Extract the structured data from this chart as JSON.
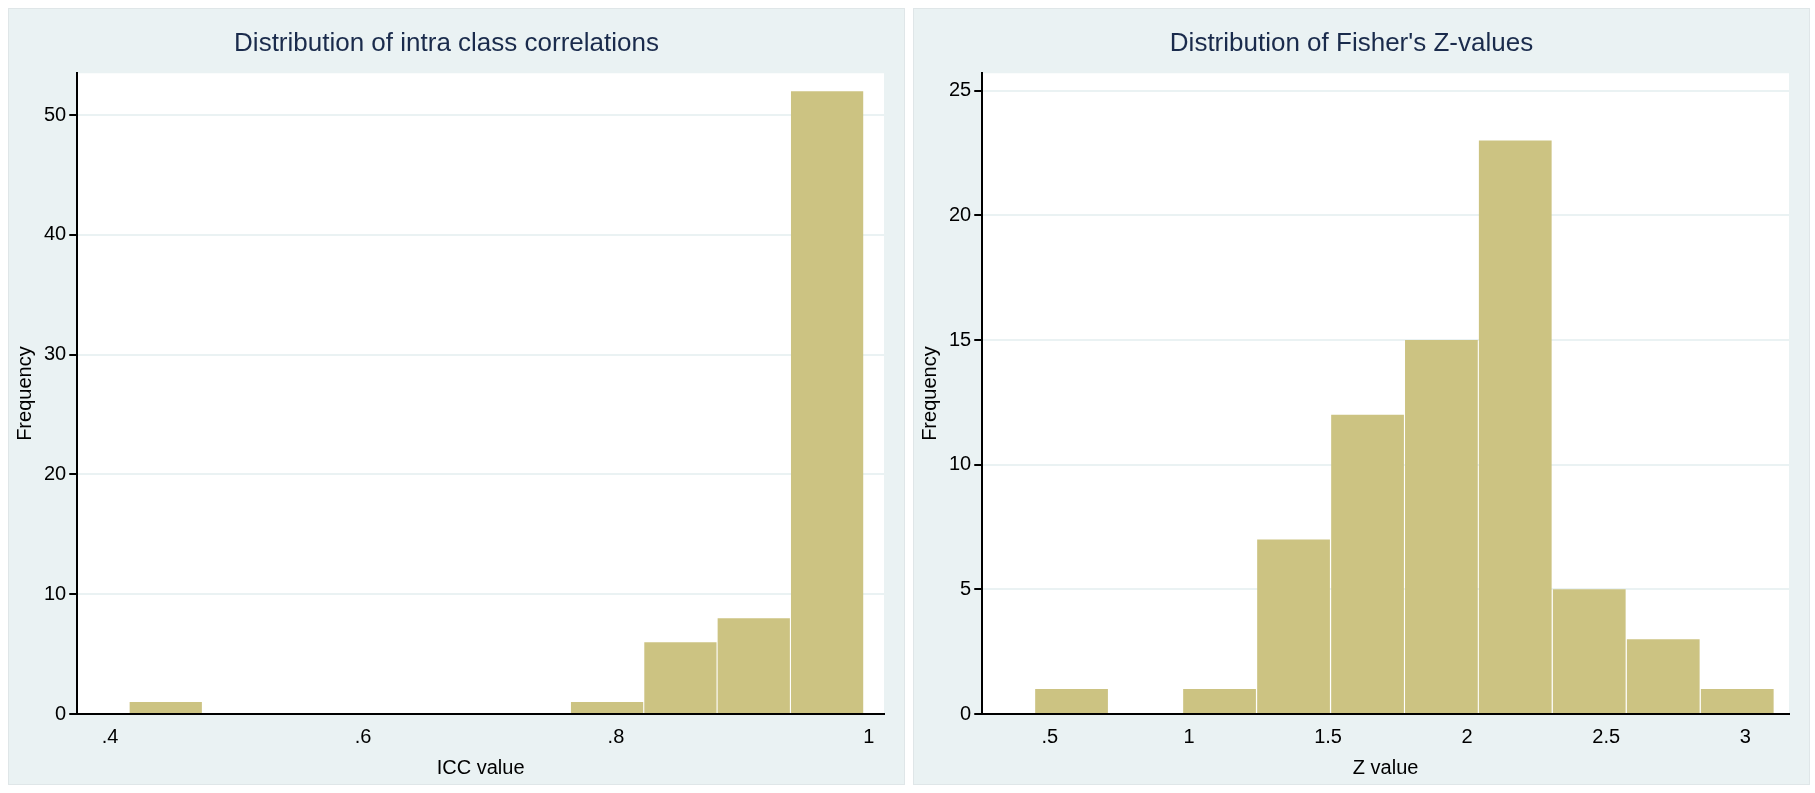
{
  "chart_data": [
    {
      "type": "histogram",
      "title": "Distribution of intra class correlations",
      "xlabel": "ICC value",
      "ylabel": "Frequency",
      "color": "#ccc382",
      "bins": [
        0.415,
        0.473,
        0.764,
        0.822,
        0.88,
        0.938,
        0.996
      ],
      "values": [
        1,
        0,
        1,
        6,
        8,
        52
      ],
      "xlim": [
        0.374,
        1.012
      ],
      "xticks": [
        {
          "value": 0.4,
          "label": ".4"
        },
        {
          "value": 0.6,
          "label": ".6"
        },
        {
          "value": 0.8,
          "label": ".8"
        },
        1
      ],
      "ylim": [
        0,
        53.5
      ],
      "yticks": [
        0,
        10,
        20,
        30,
        40,
        50
      ],
      "grid": "y"
    },
    {
      "type": "histogram",
      "title": "Distribution of Fisher's Z-values",
      "xlabel": "Z value",
      "ylabel": "Frequency",
      "color": "#ccc382",
      "bins": [
        0.445,
        0.711,
        0.977,
        1.243,
        1.509,
        1.775,
        2.04,
        2.306,
        2.572,
        2.838,
        3.104
      ],
      "values": [
        1,
        0,
        1,
        7,
        12,
        15,
        23,
        5,
        3,
        1
      ],
      "xlim": [
        0.257,
        3.157
      ],
      "xticks": [
        {
          "value": 0.5,
          "label": ".5"
        },
        1,
        1.5,
        2,
        2.5,
        3
      ],
      "ylim": [
        0,
        25.7
      ],
      "yticks": [
        0,
        5,
        10,
        15,
        20,
        25
      ],
      "grid": "y"
    }
  ]
}
